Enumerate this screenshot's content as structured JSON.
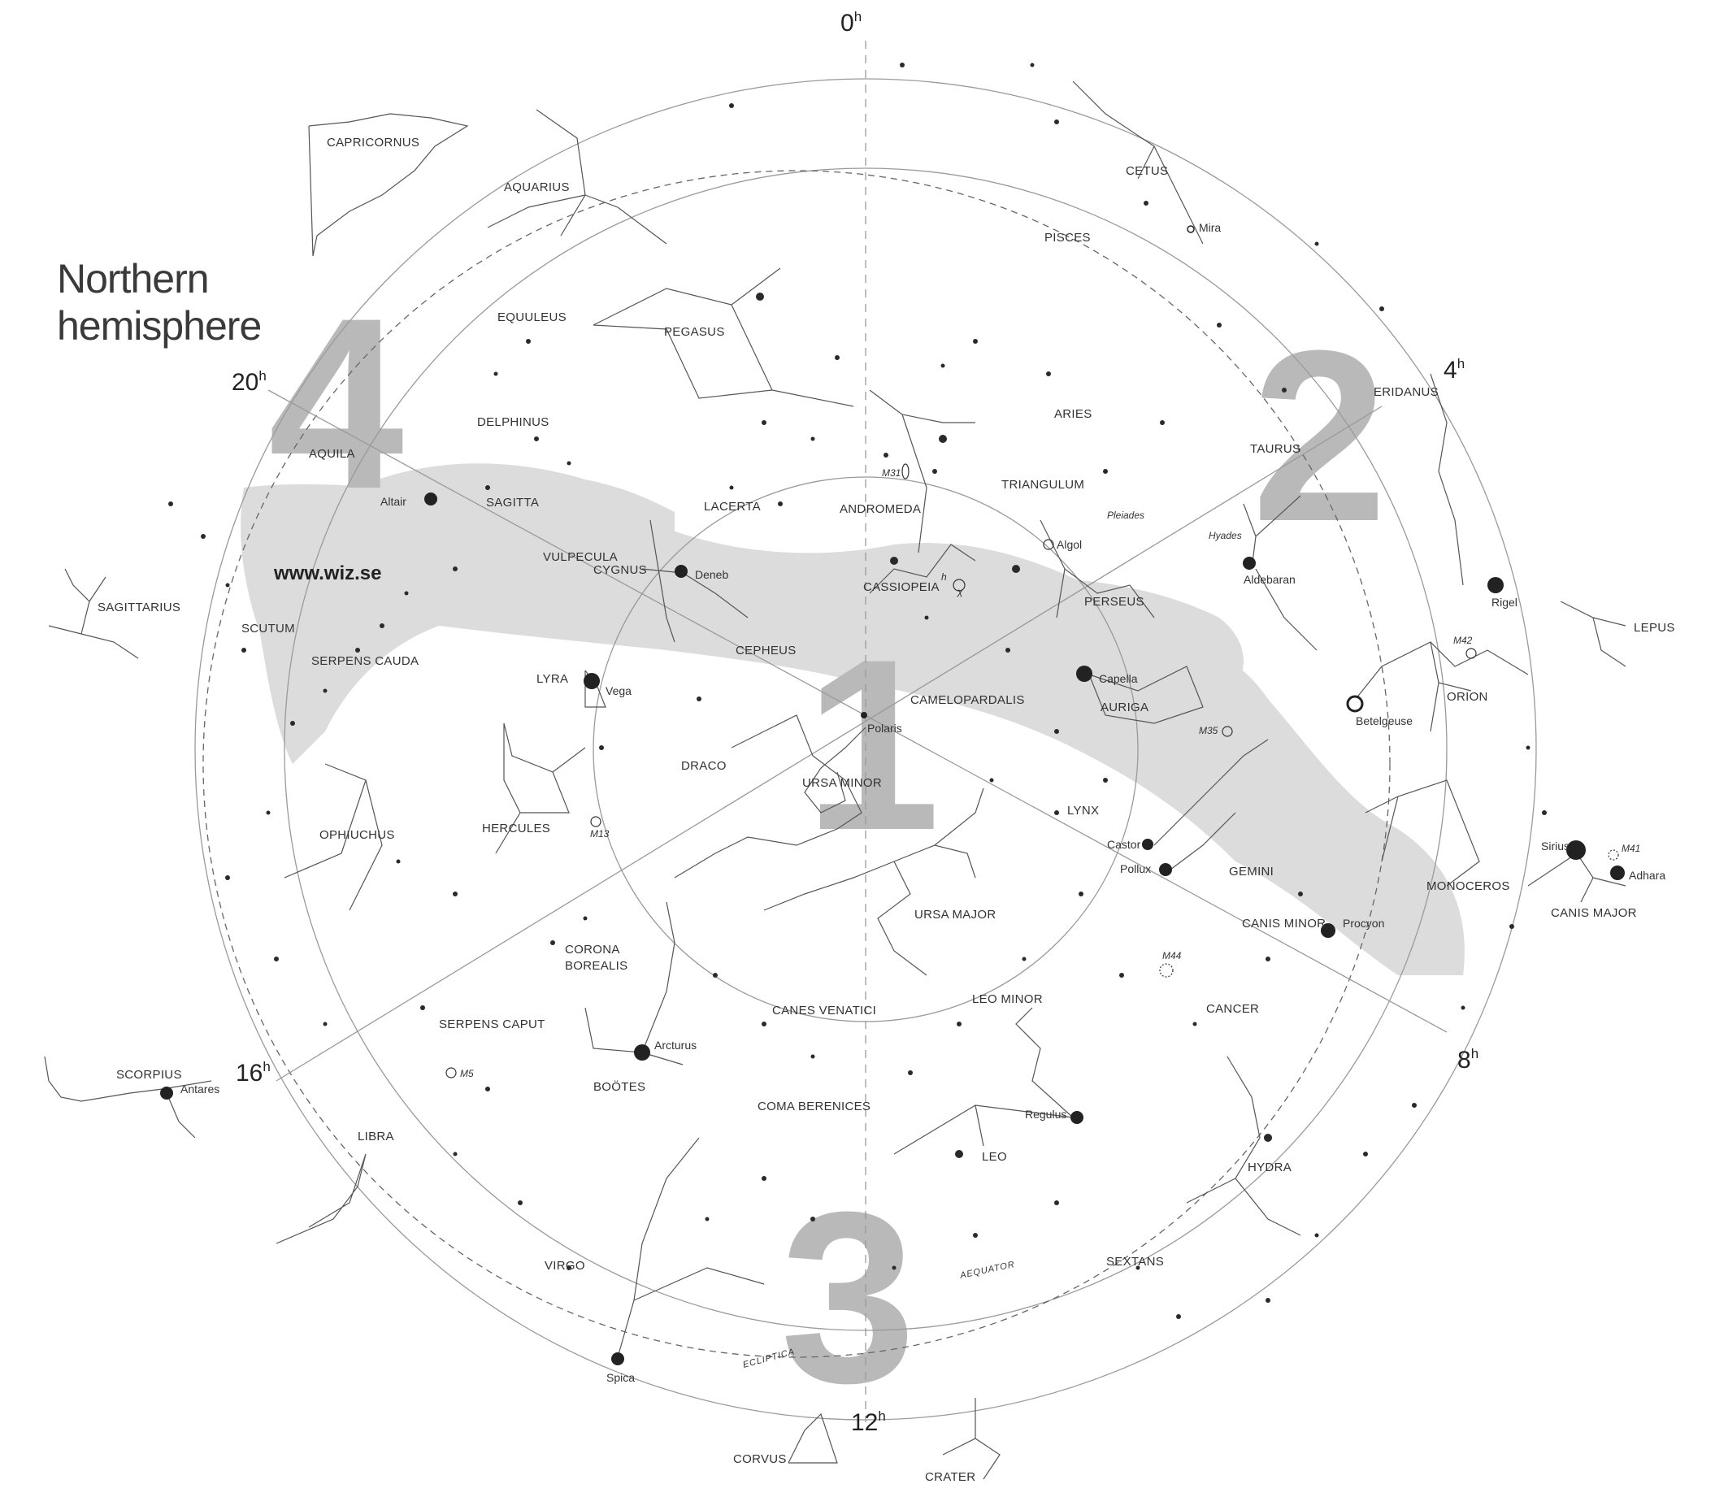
{
  "title_line1": "Northern",
  "title_line2": "hemisphere",
  "website": "www.wiz.se",
  "quadrants": [
    "1",
    "2",
    "3",
    "4"
  ],
  "hours": [
    {
      "label": "0",
      "sup": "h"
    },
    {
      "label": "4",
      "sup": "h"
    },
    {
      "label": "8",
      "sup": "h"
    },
    {
      "label": "12",
      "sup": "h"
    },
    {
      "label": "16",
      "sup": "h"
    },
    {
      "label": "20",
      "sup": "h"
    }
  ],
  "constellations": [
    "CAPRICORNUS",
    "AQUARIUS",
    "CETUS",
    "PISCES",
    "EQUULEUS",
    "PEGASUS",
    "DELPHINUS",
    "AQUILA",
    "SAGITTA",
    "VULPECULA",
    "LACERTA",
    "ANDROMEDA",
    "TRIANGULUM",
    "ARIES",
    "TAURUS",
    "ERIDANUS",
    "SAGITTARIUS",
    "SCUTUM",
    "CYGNUS",
    "CASSIOPEIA",
    "PERSEUS",
    "CEPHEUS",
    "LYRA",
    "SERPENS CAUDA",
    "CAMELOPARDALIS",
    "AURIGA",
    "ORION",
    "LEPUS",
    "DRACO",
    "URSA MINOR",
    "LYNX",
    "GEMINI",
    "HERCULES",
    "OPHIUCHUS",
    "URSA MAJOR",
    "MONOCEROS",
    "CANIS MINOR",
    "CANIS MAJOR",
    "CORONA BOREALIS",
    "CANES VENATICI",
    "LEO MINOR",
    "CANCER",
    "SERPENS CAPUT",
    "BOÖTES",
    "COMA BERENICES",
    "SCORPIUS",
    "LIBRA",
    "LEO",
    "HYDRA",
    "VIRGO",
    "SEXTANS",
    "CORVUS",
    "CRATER"
  ],
  "stars": [
    "Mira",
    "Altair",
    "Deneb",
    "Vega",
    "Polaris",
    "Capella",
    "Aldebaran",
    "Rigel",
    "Betelgeuse",
    "Castor",
    "Pollux",
    "Procyon",
    "Sirius",
    "Adhara",
    "Arcturus",
    "Antares",
    "Regulus",
    "Spica"
  ],
  "objects": [
    "M31",
    "Pleiades",
    "Hyades",
    "Algol",
    "M42",
    "M35",
    "M13",
    "M41",
    "M44",
    "M5",
    "h",
    "χ"
  ],
  "circle_labels": {
    "equator": "AEQUATOR",
    "ecliptic": "ECLIPTICA"
  },
  "colors": {
    "milky_way": "#dcdcdc",
    "big_numbers": "#b9b9b9",
    "lines": "#555555",
    "stars": "#2a2a2a"
  }
}
